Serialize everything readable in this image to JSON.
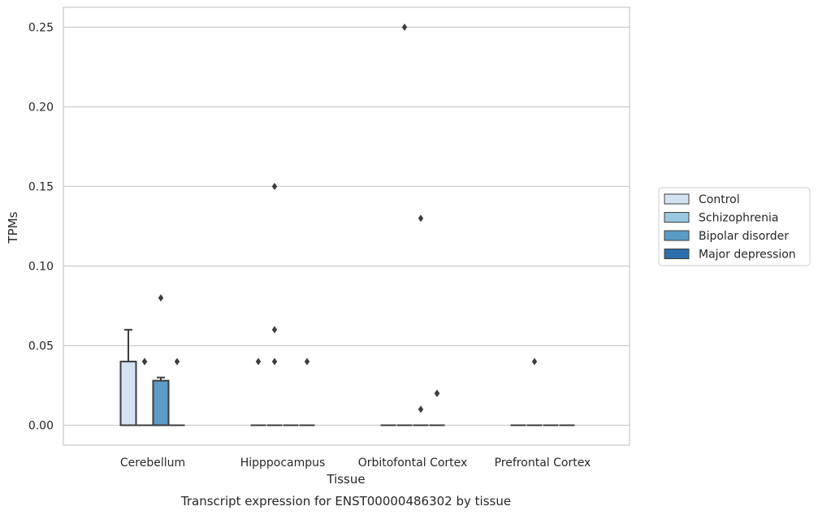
{
  "chart_data": {
    "type": "box",
    "xlabel": "Tissue",
    "ylabel": "TPMs",
    "caption": "Transcript expression for ENST00000486302 by tissue",
    "ylim": [
      -0.0125,
      0.2625
    ],
    "yticks": [
      0.0,
      0.05,
      0.1,
      0.15,
      0.2,
      0.25
    ],
    "ytick_labels": [
      "0.00",
      "0.05",
      "0.10",
      "0.15",
      "0.20",
      "0.25"
    ],
    "grid": true,
    "legend_position": "right",
    "categories": [
      "Cerebellum",
      "Hipppocampus",
      "Orbitofontal Cortex",
      "Prefrontal Cortex"
    ],
    "series": [
      {
        "name": "Control",
        "color": "#d3e3f3",
        "boxes": [
          {
            "q1": 0.0,
            "median": 0.0,
            "q3": 0.04,
            "whisker_low": 0.0,
            "whisker_high": 0.06,
            "outliers": []
          },
          {
            "q1": 0.0,
            "median": 0.0,
            "q3": 0.0,
            "whisker_low": 0.0,
            "whisker_high": 0.0,
            "outliers": [
              0.04
            ]
          },
          {
            "q1": 0.0,
            "median": 0.0,
            "q3": 0.0,
            "whisker_low": 0.0,
            "whisker_high": 0.0,
            "outliers": []
          },
          {
            "q1": 0.0,
            "median": 0.0,
            "q3": 0.0,
            "whisker_low": 0.0,
            "whisker_high": 0.0,
            "outliers": []
          }
        ]
      },
      {
        "name": "Schizophrenia",
        "color": "#9ac8e0",
        "boxes": [
          {
            "q1": 0.0,
            "median": 0.0,
            "q3": 0.0,
            "whisker_low": 0.0,
            "whisker_high": 0.0,
            "outliers": [
              0.04,
              0.04
            ]
          },
          {
            "q1": 0.0,
            "median": 0.0,
            "q3": 0.0,
            "whisker_low": 0.0,
            "whisker_high": 0.0,
            "outliers": [
              0.04,
              0.06,
              0.15
            ]
          },
          {
            "q1": 0.0,
            "median": 0.0,
            "q3": 0.0,
            "whisker_low": 0.0,
            "whisker_high": 0.0,
            "outliers": [
              0.25
            ]
          },
          {
            "q1": 0.0,
            "median": 0.0,
            "q3": 0.0,
            "whisker_low": 0.0,
            "whisker_high": 0.0,
            "outliers": [
              0.04
            ]
          }
        ]
      },
      {
        "name": "Bipolar disorder",
        "color": "#5a9bc8",
        "boxes": [
          {
            "q1": 0.0,
            "median": 0.0,
            "q3": 0.028,
            "whisker_low": 0.0,
            "whisker_high": 0.03,
            "outliers": [
              0.08
            ]
          },
          {
            "q1": 0.0,
            "median": 0.0,
            "q3": 0.0,
            "whisker_low": 0.0,
            "whisker_high": 0.0,
            "outliers": []
          },
          {
            "q1": 0.0,
            "median": 0.0,
            "q3": 0.0,
            "whisker_low": 0.0,
            "whisker_high": 0.0,
            "outliers": [
              0.01,
              0.13
            ]
          },
          {
            "q1": 0.0,
            "median": 0.0,
            "q3": 0.0,
            "whisker_low": 0.0,
            "whisker_high": 0.0,
            "outliers": []
          }
        ]
      },
      {
        "name": "Major depression",
        "color": "#2c6fac",
        "boxes": [
          {
            "q1": 0.0,
            "median": 0.0,
            "q3": 0.0,
            "whisker_low": 0.0,
            "whisker_high": 0.0,
            "outliers": [
              0.04
            ]
          },
          {
            "q1": 0.0,
            "median": 0.0,
            "q3": 0.0,
            "whisker_low": 0.0,
            "whisker_high": 0.0,
            "outliers": [
              0.04
            ]
          },
          {
            "q1": 0.0,
            "median": 0.0,
            "q3": 0.0,
            "whisker_low": 0.0,
            "whisker_high": 0.0,
            "outliers": [
              0.02,
              0.02
            ]
          },
          {
            "q1": 0.0,
            "median": 0.0,
            "q3": 0.0,
            "whisker_low": 0.0,
            "whisker_high": 0.0,
            "outliers": []
          }
        ]
      }
    ]
  }
}
